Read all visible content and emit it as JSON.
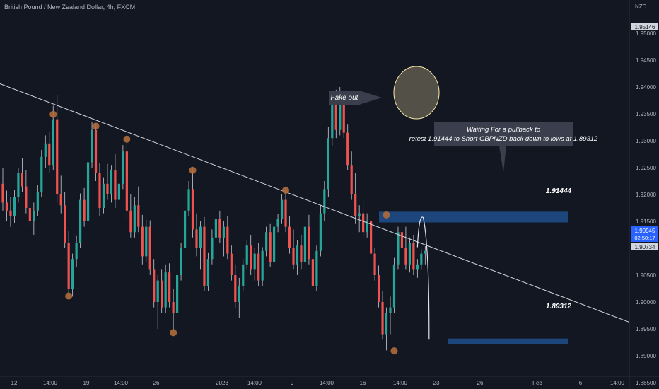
{
  "header": {
    "title": "British Pound / New Zealand Dollar, 4h, FXCM",
    "currency": "NZD"
  },
  "colors": {
    "background": "#131722",
    "up_candle": "#26a69a",
    "down_candle": "#ef5350",
    "wick": "#c9ccd4",
    "trendline": "#d1d4dc",
    "zone": "#1e4b86",
    "pivot_marker": "#b06c3a",
    "fake_out_circle": "#fbe9a8",
    "callout_bg": "#3b3f4d",
    "price_label_bg": "#d1d4dc",
    "current_price_bg": "#2962ff"
  },
  "chart_data": {
    "type": "candlestick",
    "symbol": "GBPNZD",
    "timeframe": "4h",
    "ylim": [
      1.8837,
      1.9598
    ],
    "y_ticks": [
      "1.95000",
      "1.94500",
      "1.94000",
      "1.93500",
      "1.93000",
      "1.92500",
      "1.92000",
      "1.91500",
      "1.91000",
      "1.90500",
      "1.90000",
      "1.89500",
      "1.89000",
      "1.88500"
    ],
    "x_ticks": [
      "12",
      "14:00",
      "19",
      "14:00",
      "26",
      "2023",
      "14:00",
      "9",
      "14:00",
      "16",
      "14:00",
      "23",
      "26",
      "Feb",
      "6",
      "14:00"
    ],
    "price_labels": {
      "high": "1.95146",
      "current": "1.90945",
      "countdown": "02:50:17",
      "low": "1.90734"
    },
    "levels": [
      {
        "label": "1.91444",
        "price": 1.91444
      },
      {
        "label": "1.89312",
        "price": 1.89312
      }
    ],
    "annotations": [
      {
        "text": "Fake out"
      },
      {
        "text": "Waiting For a pullback to retest 1.91444 to Short GBPNZD back down to lows at 1.89312"
      }
    ],
    "trendline": [
      [
        0,
        1.9404
      ],
      [
        130,
        1.9049
      ]
    ],
    "pivot_points": [
      [
        13,
        1.9349
      ],
      [
        17,
        1.9011
      ],
      [
        24,
        1.9327
      ],
      [
        32,
        1.9303
      ],
      [
        44,
        1.8943
      ],
      [
        49,
        1.9245
      ],
      [
        73,
        1.9208
      ],
      [
        99,
        1.9162
      ],
      [
        101,
        1.8909
      ]
    ],
    "projected_path": [
      [
        107,
        1.9102
      ],
      [
        108.5,
        1.9157
      ],
      [
        109.5,
        1.9102
      ],
      [
        110,
        1.893
      ]
    ],
    "candles": [
      [
        1.922,
        1.9249,
        1.917,
        1.9185
      ],
      [
        1.9185,
        1.9207,
        1.915,
        1.917
      ],
      [
        1.917,
        1.9196,
        1.914,
        1.916
      ],
      [
        1.916,
        1.9209,
        1.9147,
        1.9195
      ],
      [
        1.9195,
        1.925,
        1.9185,
        1.924
      ],
      [
        1.924,
        1.9268,
        1.9205,
        1.9215
      ],
      [
        1.9215,
        1.9245,
        1.9165,
        1.9175
      ],
      [
        1.9175,
        1.9212,
        1.914,
        1.915
      ],
      [
        1.915,
        1.9185,
        1.9125,
        1.917
      ],
      [
        1.917,
        1.9217,
        1.916,
        1.9205
      ],
      [
        1.9205,
        1.9283,
        1.9195,
        1.927
      ],
      [
        1.927,
        1.931,
        1.925,
        1.9295
      ],
      [
        1.9295,
        1.9317,
        1.924,
        1.9255
      ],
      [
        1.9255,
        1.9365,
        1.9245,
        1.934
      ],
      [
        1.934,
        1.9385,
        1.9185,
        1.92
      ],
      [
        1.92,
        1.9235,
        1.9165,
        1.918
      ],
      [
        1.918,
        1.9205,
        1.91,
        1.911
      ],
      [
        1.911,
        1.9132,
        1.9005,
        1.9025
      ],
      [
        1.9025,
        1.909,
        1.901,
        1.908
      ],
      [
        1.908,
        1.9124,
        1.9065,
        1.911
      ],
      [
        1.911,
        1.9202,
        1.91,
        1.919
      ],
      [
        1.919,
        1.9212,
        1.914,
        1.915
      ],
      [
        1.915,
        1.928,
        1.914,
        1.926
      ],
      [
        1.926,
        1.9335,
        1.925,
        1.932
      ],
      [
        1.932,
        1.933,
        1.9225,
        1.924
      ],
      [
        1.924,
        1.9258,
        1.916,
        1.9175
      ],
      [
        1.9175,
        1.9232,
        1.9165,
        1.922
      ],
      [
        1.922,
        1.9257,
        1.919,
        1.92
      ],
      [
        1.92,
        1.9255,
        1.9185,
        1.9245
      ],
      [
        1.9245,
        1.9275,
        1.9175,
        1.919
      ],
      [
        1.919,
        1.9232,
        1.918,
        1.922
      ],
      [
        1.922,
        1.9292,
        1.921,
        1.928
      ],
      [
        1.928,
        1.931,
        1.9155,
        1.917
      ],
      [
        1.917,
        1.92,
        1.912,
        1.913
      ],
      [
        1.913,
        1.9195,
        1.912,
        1.918
      ],
      [
        1.918,
        1.9215,
        1.913,
        1.914
      ],
      [
        1.914,
        1.9162,
        1.907,
        1.9085
      ],
      [
        1.9085,
        1.9153,
        1.9075,
        1.914
      ],
      [
        1.914,
        1.9152,
        1.905,
        1.906
      ],
      [
        1.906,
        1.908,
        1.899,
        1.9
      ],
      [
        1.9,
        1.905,
        1.895,
        1.904
      ],
      [
        1.904,
        1.906,
        1.898,
        1.899
      ],
      [
        1.899,
        1.907,
        1.898,
        1.9055
      ],
      [
        1.9055,
        1.9072,
        1.899,
        1.9
      ],
      [
        1.9,
        1.9025,
        1.8946,
        1.898
      ],
      [
        1.898,
        1.906,
        1.8975,
        1.905
      ],
      [
        1.905,
        1.911,
        1.904,
        1.91
      ],
      [
        1.91,
        1.9184,
        1.909,
        1.917
      ],
      [
        1.917,
        1.9225,
        1.916,
        1.921
      ],
      [
        1.921,
        1.9248,
        1.912,
        1.9135
      ],
      [
        1.9135,
        1.9165,
        1.9085,
        1.91
      ],
      [
        1.91,
        1.915,
        1.906,
        1.914
      ],
      [
        1.914,
        1.9158,
        1.902,
        1.903
      ],
      [
        1.903,
        1.9091,
        1.902,
        1.908
      ],
      [
        1.908,
        1.9135,
        1.907,
        1.912
      ],
      [
        1.912,
        1.9167,
        1.911,
        1.9155
      ],
      [
        1.9155,
        1.917,
        1.911,
        1.912
      ],
      [
        1.912,
        1.915,
        1.9085,
        1.914
      ],
      [
        1.914,
        1.916,
        1.908,
        1.909
      ],
      [
        1.909,
        1.9105,
        1.904,
        1.905
      ],
      [
        1.905,
        1.907,
        1.899,
        1.9
      ],
      [
        1.9,
        1.9045,
        1.897,
        1.903
      ],
      [
        1.903,
        1.908,
        1.902,
        1.907
      ],
      [
        1.907,
        1.9115,
        1.906,
        1.9105
      ],
      [
        1.9105,
        1.9125,
        1.905,
        1.906
      ],
      [
        1.906,
        1.91,
        1.904,
        1.909
      ],
      [
        1.909,
        1.911,
        1.903,
        1.904
      ],
      [
        1.904,
        1.9102,
        1.903,
        1.9095
      ],
      [
        1.9095,
        1.914,
        1.9085,
        1.913
      ],
      [
        1.913,
        1.9145,
        1.9065,
        1.9075
      ],
      [
        1.9075,
        1.9155,
        1.9065,
        1.914
      ],
      [
        1.914,
        1.9164,
        1.913,
        1.9155
      ],
      [
        1.9155,
        1.92,
        1.9145,
        1.919
      ],
      [
        1.919,
        1.9214,
        1.913,
        1.914
      ],
      [
        1.914,
        1.916,
        1.909,
        1.91
      ],
      [
        1.91,
        1.9135,
        1.906,
        1.907
      ],
      [
        1.907,
        1.9115,
        1.905,
        1.9105
      ],
      [
        1.9105,
        1.9125,
        1.906,
        1.9075
      ],
      [
        1.9075,
        1.915,
        1.9065,
        1.914
      ],
      [
        1.914,
        1.9162,
        1.907,
        1.908
      ],
      [
        1.908,
        1.91,
        1.902,
        1.903
      ],
      [
        1.903,
        1.9105,
        1.902,
        1.9095
      ],
      [
        1.9095,
        1.918,
        1.9085,
        1.9165
      ],
      [
        1.9165,
        1.9225,
        1.915,
        1.921
      ],
      [
        1.921,
        1.9325,
        1.9195,
        1.9305
      ],
      [
        1.9305,
        1.9385,
        1.929,
        1.9375
      ],
      [
        1.9375,
        1.9395,
        1.9305,
        1.932
      ],
      [
        1.932,
        1.94,
        1.931,
        1.937
      ],
      [
        1.937,
        1.9385,
        1.9305,
        1.9315
      ],
      [
        1.9315,
        1.933,
        1.9245,
        1.9255
      ],
      [
        1.9255,
        1.928,
        1.919,
        1.92
      ],
      [
        1.92,
        1.924,
        1.9145,
        1.916
      ],
      [
        1.916,
        1.918,
        1.913,
        1.9165
      ],
      [
        1.9165,
        1.919,
        1.912,
        1.913
      ],
      [
        1.913,
        1.9165,
        1.912,
        1.915
      ],
      [
        1.915,
        1.916,
        1.908,
        1.909
      ],
      [
        1.909,
        1.91,
        1.904,
        1.905
      ],
      [
        1.905,
        1.9068,
        1.899,
        1.9
      ],
      [
        1.9,
        1.902,
        1.893,
        1.894
      ],
      [
        1.894,
        1.899,
        1.891,
        1.898
      ],
      [
        1.898,
        1.901,
        1.894,
        1.899
      ],
      [
        1.899,
        1.9082,
        1.898,
        1.907
      ],
      [
        1.907,
        1.914,
        1.906,
        1.913
      ],
      [
        1.913,
        1.9162,
        1.909,
        1.91
      ],
      [
        1.91,
        1.914,
        1.906,
        1.907
      ],
      [
        1.907,
        1.912,
        1.9055,
        1.911
      ],
      [
        1.911,
        1.9125,
        1.905,
        1.906
      ],
      [
        1.906,
        1.908,
        1.9045,
        1.907
      ],
      [
        1.907,
        1.9098,
        1.906,
        1.909
      ],
      [
        1.909,
        1.9104,
        1.907,
        1.9095
      ]
    ]
  }
}
